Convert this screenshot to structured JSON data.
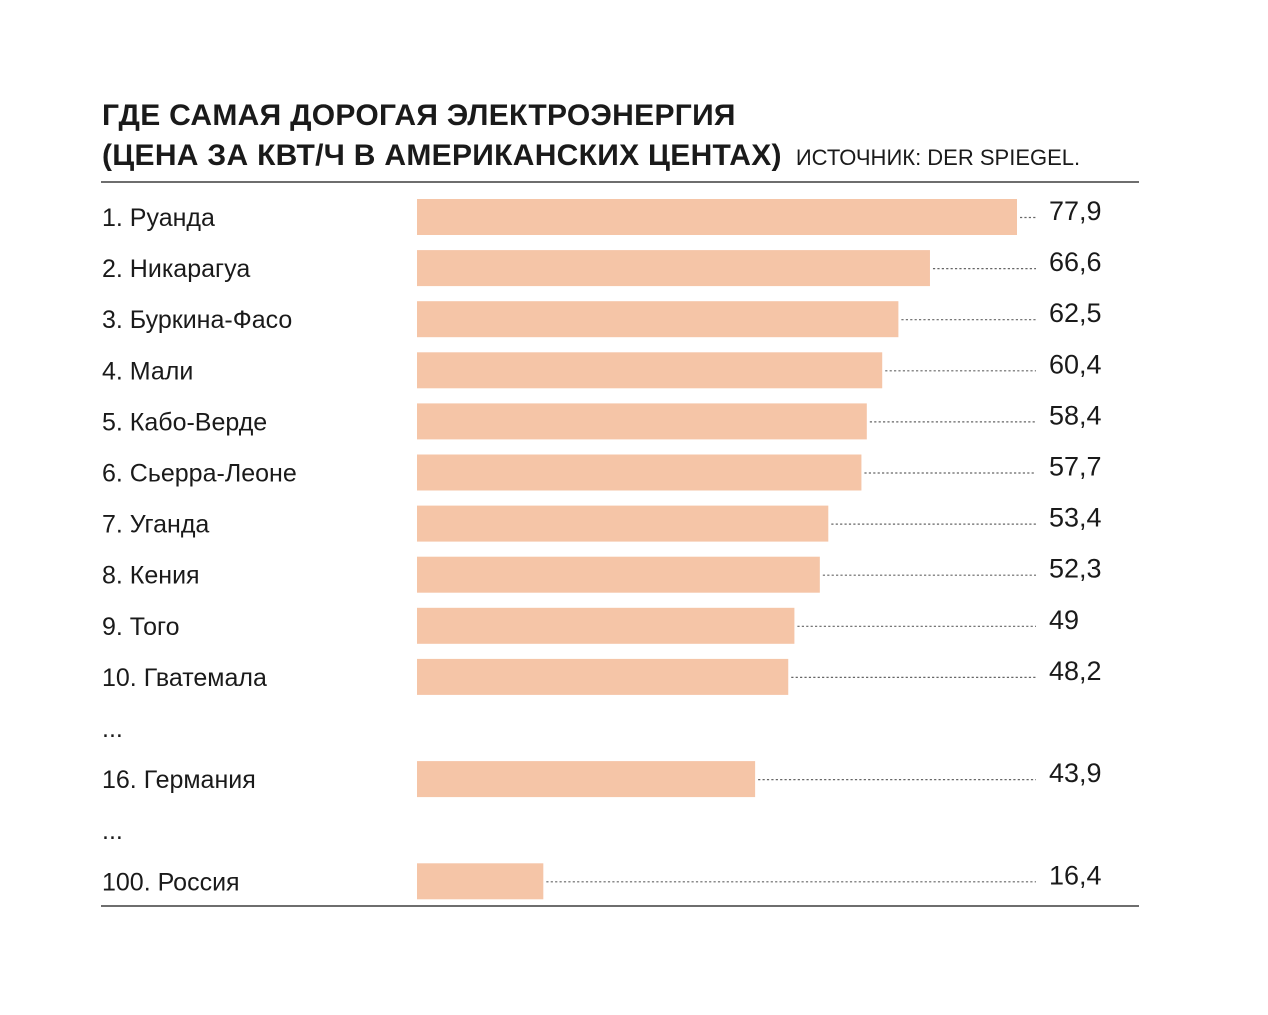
{
  "header": {
    "title_line1": "ГДЕ САМАЯ ДОРОГАЯ ЭЛЕКТРОЭНЕРГИЯ",
    "title_line2": "(ЦЕНА ЗА КВТ/Ч В АМЕРИКАНСКИХ ЦЕНТАХ)",
    "source": "ИСТОЧНИК: DER SPIEGEL."
  },
  "chart_data": {
    "type": "bar",
    "orientation": "horizontal",
    "title": "ГДЕ САМАЯ ДОРОГАЯ ЭЛЕКТРОЭНЕРГИЯ (ЦЕНА ЗА КВТ/Ч В АМЕРИКАНСКИХ ЦЕНТАХ)",
    "xlim": [
      0,
      77.9
    ],
    "grid": false,
    "legend": "none",
    "rows": [
      {
        "label": "1. Руанда",
        "value": 77.9,
        "value_label": "77,9"
      },
      {
        "label": "2. Никарагуа",
        "value": 66.6,
        "value_label": "66,6"
      },
      {
        "label": "3. Буркина-Фасо",
        "value": 62.5,
        "value_label": "62,5"
      },
      {
        "label": "4. Мали",
        "value": 60.4,
        "value_label": "60,4"
      },
      {
        "label": "5. Кабо-Верде",
        "value": 58.4,
        "value_label": "58,4"
      },
      {
        "label": "6. Сьерра-Леоне",
        "value": 57.7,
        "value_label": "57,7"
      },
      {
        "label": "7. Уганда",
        "value": 53.4,
        "value_label": "53,4"
      },
      {
        "label": "8. Кения",
        "value": 52.3,
        "value_label": "52,3"
      },
      {
        "label": "9. Того",
        "value": 49,
        "value_label": "49"
      },
      {
        "label": "10. Гватемала",
        "value": 48.2,
        "value_label": "48,2"
      },
      {
        "label": "...",
        "value": null,
        "value_label": ""
      },
      {
        "label": "16. Германия",
        "value": 43.9,
        "value_label": "43,9"
      },
      {
        "label": "...",
        "value": null,
        "value_label": ""
      },
      {
        "label": "100. Россия",
        "value": 16.4,
        "value_label": "16,4"
      }
    ],
    "colors": {
      "bar": "#f5c5a7",
      "leader": "#666666",
      "text": "#1a1a1a",
      "rule": "#6e6e6e"
    }
  }
}
